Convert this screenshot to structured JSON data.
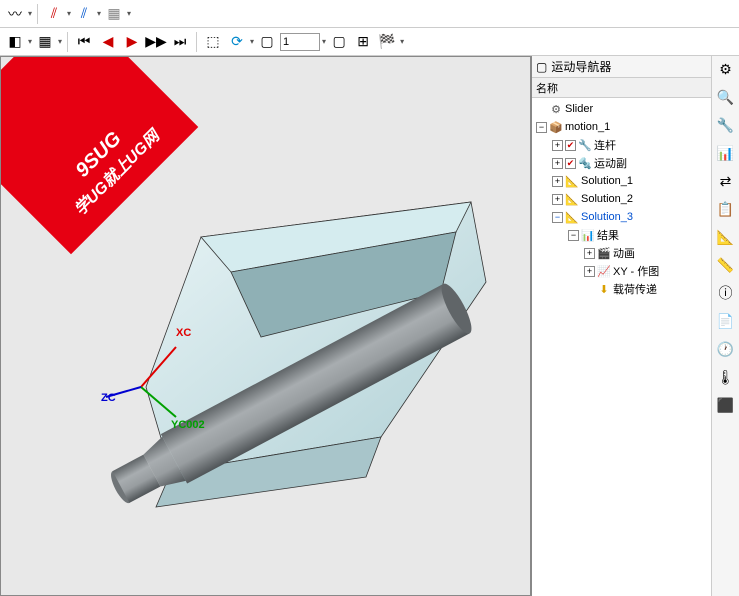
{
  "toolbar1": {
    "items": [
      "curve",
      "axis1",
      "axis2",
      "axis3"
    ]
  },
  "toolbar2": {
    "frame_input": "1",
    "play_label": "▶"
  },
  "watermark": {
    "line1": "9SUG",
    "line2": "学UG就上UG网"
  },
  "triad": {
    "x_label": "XC",
    "x_color": "#e00000",
    "y_label": "YC002",
    "y_color": "#00a000",
    "z_label": "ZC",
    "z_color": "#0000d0"
  },
  "nav": {
    "title": "运动导航器",
    "col": "名称",
    "tree": [
      {
        "depth": 0,
        "toggle": "",
        "icon": "⚙",
        "label": "Slider",
        "chk": false
      },
      {
        "depth": 0,
        "toggle": "−",
        "icon": "📦",
        "label": "motion_1",
        "chk": false,
        "iconColor": "#d9a000"
      },
      {
        "depth": 1,
        "toggle": "+",
        "icon": "🔧",
        "label": "连杆",
        "chk": true,
        "iconColor": "#d9a000"
      },
      {
        "depth": 1,
        "toggle": "+",
        "icon": "🔩",
        "label": "运动副",
        "chk": true,
        "iconColor": "#d9a000"
      },
      {
        "depth": 1,
        "toggle": "+",
        "icon": "📐",
        "label": "Solution_1",
        "chk": false,
        "iconColor": "#d9a000"
      },
      {
        "depth": 1,
        "toggle": "+",
        "icon": "📐",
        "label": "Solution_2",
        "chk": false,
        "iconColor": "#d9a000"
      },
      {
        "depth": 1,
        "toggle": "−",
        "icon": "📐",
        "label": "Solution_3",
        "chk": false,
        "iconColor": "#d9a000",
        "selected": true
      },
      {
        "depth": 2,
        "toggle": "−",
        "icon": "📊",
        "label": "结果",
        "chk": false,
        "iconColor": "#00a000"
      },
      {
        "depth": 3,
        "toggle": "+",
        "icon": "🎬",
        "label": "动画",
        "chk": false,
        "iconColor": "#d9a000"
      },
      {
        "depth": 3,
        "toggle": "+",
        "icon": "📈",
        "label": "XY - 作图",
        "chk": false,
        "iconColor": "#c00000"
      },
      {
        "depth": 3,
        "toggle": "",
        "icon": "⬇",
        "label": "载荷传递",
        "chk": false,
        "iconColor": "#d9a000"
      }
    ]
  },
  "iconstrip": [
    "⚙",
    "🔍",
    "🔧",
    "📊",
    "⇄",
    "📋",
    "📐",
    "📏",
    "ⓘ",
    "📄",
    "🕐",
    "🌡",
    "⬛"
  ],
  "colors": {
    "viewport_bg": "#e8e8e8",
    "model_light": "#cfe8ec",
    "model_dark": "#808588",
    "watermark": "#e60012"
  }
}
